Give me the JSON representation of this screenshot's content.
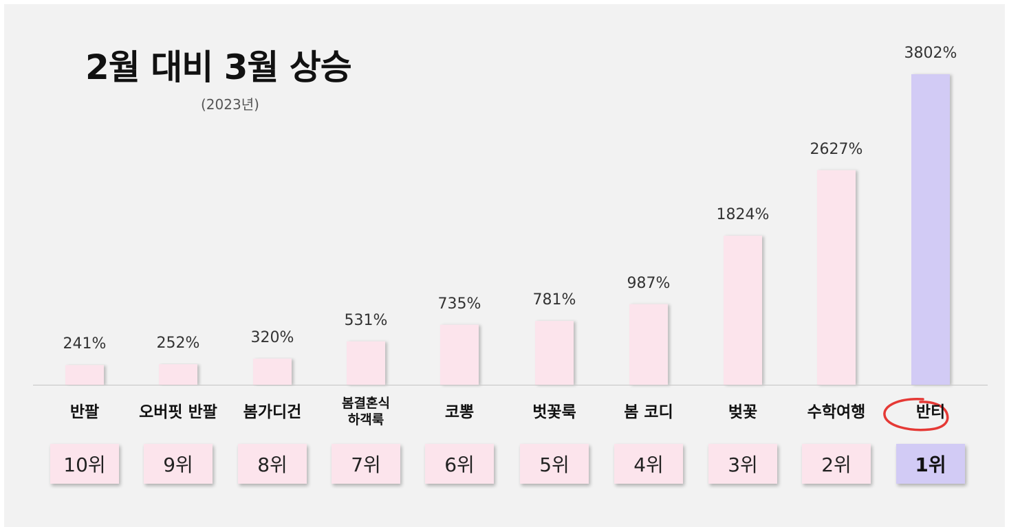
{
  "chart_data": {
    "type": "bar",
    "title": "2월 대비 3월 상승",
    "subtitle": "(2023년)",
    "categories": [
      "반팔",
      "오버핏 반팔",
      "봄가디건",
      "봄결혼식 하객룩",
      "코뽕",
      "벗꽃룩",
      "봄 코디",
      "벚꽃",
      "수학여행",
      "반티"
    ],
    "values": [
      241,
      252,
      320,
      531,
      735,
      781,
      987,
      1824,
      2627,
      3802
    ],
    "value_labels": [
      "241%",
      "252%",
      "320%",
      "531%",
      "735%",
      "781%",
      "987%",
      "1824%",
      "2627%",
      "3802%"
    ],
    "ranks": [
      "10위",
      "9위",
      "8위",
      "7위",
      "6위",
      "5위",
      "4위",
      "3위",
      "2위",
      "1위"
    ],
    "ylim": [
      0,
      3802
    ],
    "grid": false,
    "legend": "none",
    "colors": {
      "bar": "#fce4ec",
      "highlight": "#d2cbf5",
      "circle": "#e53935"
    }
  }
}
